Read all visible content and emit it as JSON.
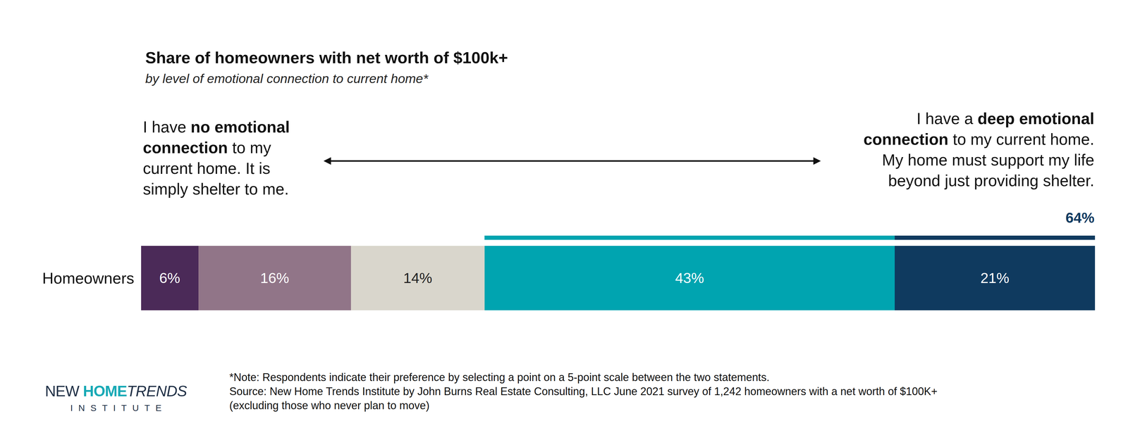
{
  "chart_data": {
    "type": "bar",
    "orientation": "horizontal",
    "stacked": true,
    "data_labels": true,
    "tick_labels": "y",
    "grid": false,
    "title": "Share of homeowners with net worth of $100k+",
    "subtitle": "by level of emotional connection to current home*",
    "categories": [
      "Homeowners"
    ],
    "xlim": [
      0,
      100
    ],
    "series": [
      {
        "color": "#4b2a58",
        "values": [
          6
        ],
        "value_labels": [
          "6%"
        ]
      },
      {
        "color": "#917588",
        "values": [
          16
        ],
        "value_labels": [
          "16%"
        ]
      },
      {
        "color": "#d9d6cc",
        "values": [
          14
        ],
        "value_labels": [
          "14%"
        ]
      },
      {
        "color": "#00a4b0",
        "values": [
          43
        ],
        "value_labels": [
          "43%"
        ]
      },
      {
        "color": "#0f3a5f",
        "values": [
          21
        ],
        "value_labels": [
          "21%"
        ]
      }
    ],
    "annotations": {
      "left_statement": [
        [
          {
            "text": "I have "
          },
          {
            "text": "no emotional",
            "bold": true
          }
        ],
        [
          {
            "text": "connection",
            "bold": true
          },
          {
            "text": " to my"
          }
        ],
        [
          {
            "text": "current home. It is"
          }
        ],
        [
          {
            "text": "simply shelter to me."
          }
        ]
      ],
      "right_statement": [
        [
          {
            "text": "I have a "
          },
          {
            "text": "deep emotional",
            "bold": true
          }
        ],
        [
          {
            "text": "connection",
            "bold": true
          },
          {
            "text": " to my current home."
          }
        ],
        [
          {
            "text": "My home must support my life"
          }
        ],
        [
          {
            "text": "beyond just providing shelter."
          }
        ]
      ],
      "bracket": {
        "value": 64,
        "label": "64%"
      },
      "notes": [
        "*Note: Respondents indicate their preference by selecting a point on a 5-point scale between the two statements.",
        "Source: New Home Trends Institute by John Burns Real Estate Consulting, LLC June 2021 survey of 1,242 homeowners with a net worth of $100K+",
        "(excluding those who never plan to move)"
      ],
      "logo": {
        "parts": [
          {
            "text": "NEW "
          },
          {
            "text": "HOME",
            "bold": true
          },
          {
            "text": "TRENDS",
            "italic": true
          }
        ],
        "subtitle": "INSTITUTE"
      }
    }
  }
}
